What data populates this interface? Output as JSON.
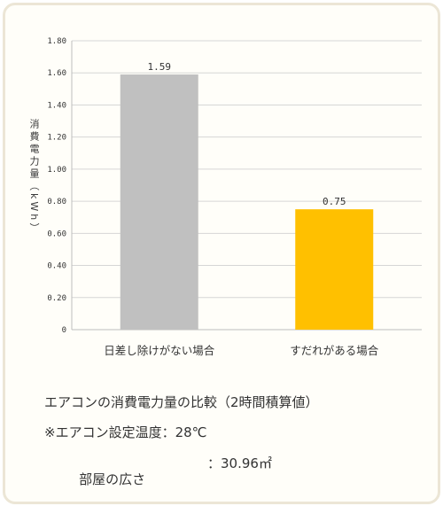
{
  "chart_data": {
    "type": "bar",
    "ylabel": "消費電力量（kWh）",
    "ylim": [
      0,
      1.8
    ],
    "yticks": [
      "0",
      "0.20",
      "0.40",
      "0.60",
      "0.80",
      "1.00",
      "1.20",
      "1.40",
      "1.60",
      "1.80"
    ],
    "categories": [
      "日差し除けがない場合",
      "すだれがある場合"
    ],
    "values": [
      1.59,
      0.75
    ],
    "value_labels": [
      "1.59",
      "0.75"
    ],
    "bar_colors": [
      "#c0c0c0",
      "#ffc000"
    ],
    "grid": true
  },
  "caption": {
    "title": "エアコンの消費電力量の比較（2時間積算値）",
    "line1": "※エアコン設定温度：28℃",
    "line2_label": "部屋の広さ",
    "line2_value": "：30.96㎡"
  }
}
